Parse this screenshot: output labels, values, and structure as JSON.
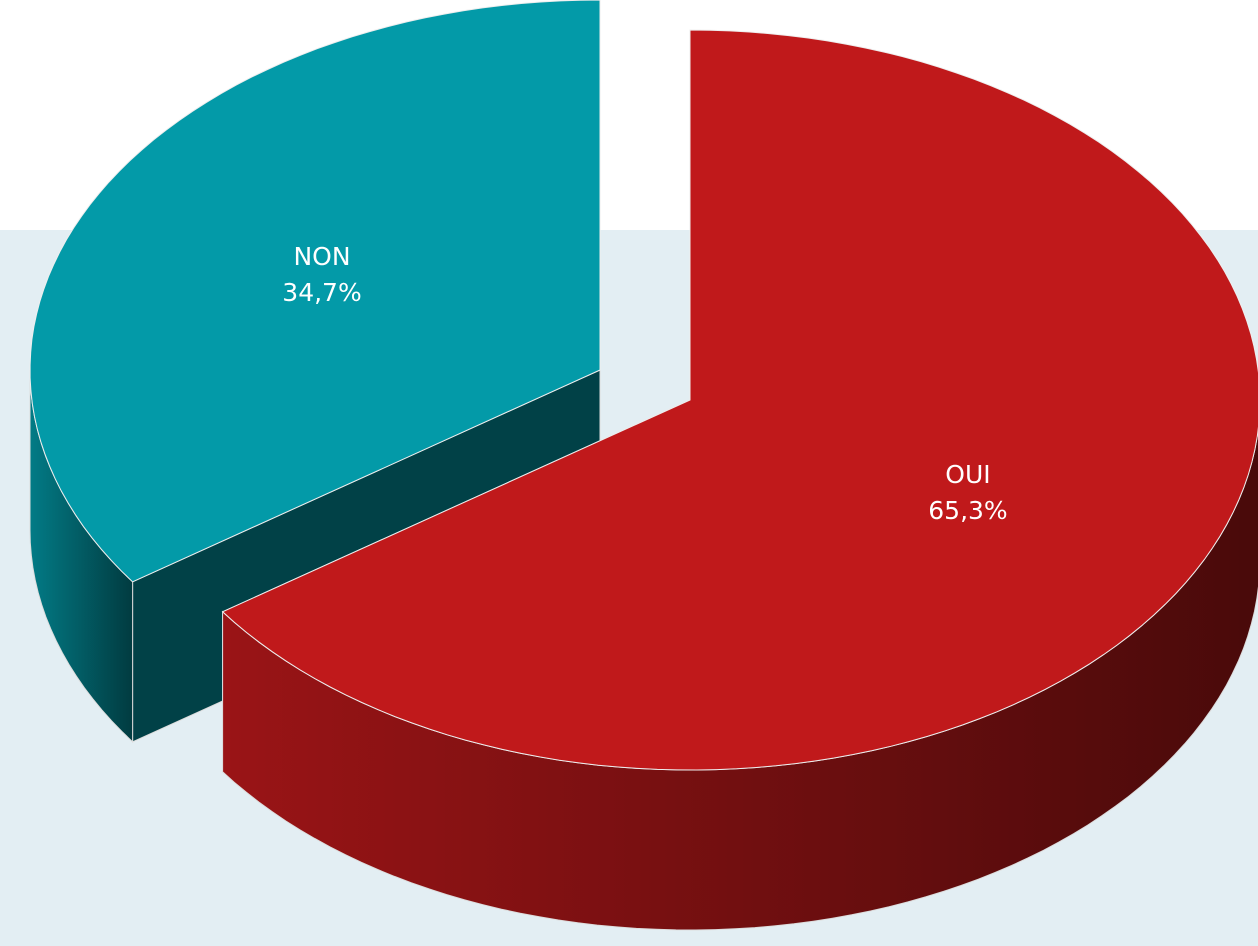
{
  "chart_data": {
    "type": "pie",
    "categories": [
      "OUI",
      "NON"
    ],
    "values": [
      65.3,
      34.7
    ],
    "value_labels": [
      "65,3%",
      "34,7%"
    ],
    "colors": [
      "#c0191b",
      "#039aa8"
    ]
  }
}
